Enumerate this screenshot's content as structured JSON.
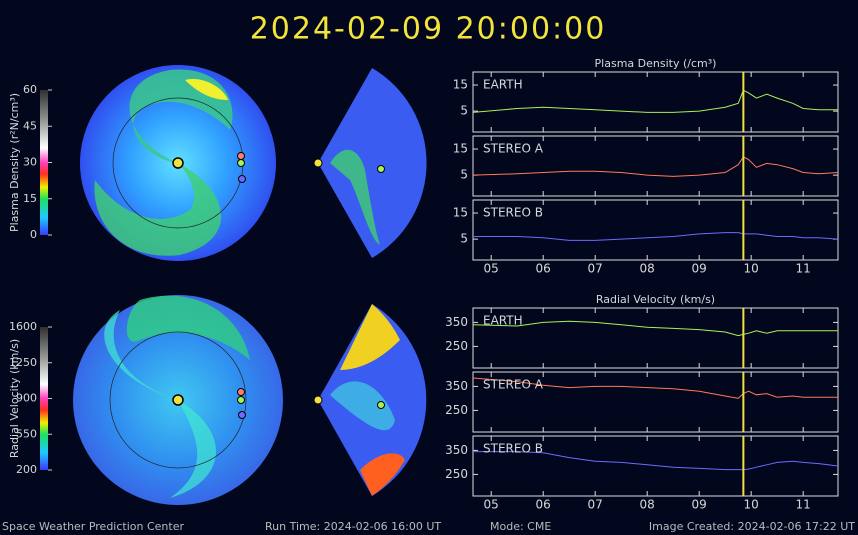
{
  "header": {
    "timestamp": "2024-02-09 20:00:00"
  },
  "footer": {
    "org": "Space Weather Prediction Center",
    "run_time": "Run Time: 2024-02-06 16:00 UT",
    "mode": "Mode: CME",
    "created": "Image Created: 2024-02-06 17:22 UT"
  },
  "colorbars": [
    {
      "label": "Plasma Density (r²N/cm³)",
      "lim": [
        0,
        60
      ],
      "ticks": [
        0,
        15,
        30,
        45,
        60
      ]
    },
    {
      "label": "Radial Velocity (km/s)",
      "lim": [
        200,
        1600
      ],
      "ticks": [
        200,
        550,
        900,
        1250,
        1600
      ]
    }
  ],
  "chart_data": [
    {
      "type": "line",
      "title": "Plasma Density (/cm³)",
      "x": [
        4.65,
        5.5,
        6.0,
        6.5,
        7.0,
        7.5,
        8.0,
        8.5,
        9.0,
        9.5,
        9.75,
        9.85,
        9.95,
        10.1,
        10.3,
        10.5,
        10.8,
        11.0,
        11.3,
        11.67
      ],
      "series": [
        {
          "name": "EARTH",
          "color": "#a6f25a",
          "values": [
            4.5,
            6,
            6.5,
            6,
            5.5,
            5,
            4.5,
            4.5,
            5,
            6.5,
            8,
            13,
            12,
            10,
            11.5,
            10,
            8,
            6,
            5.5,
            5.5
          ]
        }
      ],
      "xlim": [
        4.65,
        11.67
      ],
      "xticks": [
        5,
        6,
        7,
        8,
        9,
        10,
        11
      ],
      "ylim": [
        -3,
        20
      ],
      "yticks": [
        5,
        15
      ],
      "marker_x": 9.85,
      "marker_color": "#f0e040"
    },
    {
      "type": "line",
      "x": [
        4.65,
        5.5,
        6.0,
        6.5,
        7.0,
        7.5,
        8.0,
        8.5,
        9.0,
        9.5,
        9.75,
        9.85,
        9.95,
        10.1,
        10.3,
        10.5,
        10.8,
        11.0,
        11.3,
        11.67
      ],
      "series": [
        {
          "name": "STEREO A",
          "color": "#ff7a58",
          "values": [
            5,
            5.5,
            6,
            6.5,
            6.5,
            6,
            5,
            4.5,
            5,
            6,
            9,
            12,
            11,
            8,
            9.5,
            9,
            7.5,
            6,
            5.5,
            6
          ]
        }
      ],
      "xlim": [
        4.65,
        11.67
      ],
      "xticks": [
        5,
        6,
        7,
        8,
        9,
        10,
        11
      ],
      "ylim": [
        -3,
        20
      ],
      "yticks": [
        5,
        15
      ],
      "marker_x": 9.85,
      "marker_color": "#f0e040"
    },
    {
      "type": "line",
      "x": [
        4.65,
        5.5,
        6.0,
        6.5,
        7.0,
        7.5,
        8.0,
        8.5,
        9.0,
        9.5,
        9.75,
        9.85,
        9.95,
        10.1,
        10.3,
        10.5,
        10.8,
        11.0,
        11.3,
        11.67
      ],
      "series": [
        {
          "name": "STEREO B",
          "color": "#6b6bff",
          "values": [
            6,
            6,
            5.5,
            4.5,
            4.5,
            5,
            5.5,
            6,
            7,
            7.5,
            7.5,
            7,
            7,
            7,
            6.5,
            6,
            6,
            5.5,
            5.5,
            5
          ]
        }
      ],
      "xlim": [
        4.65,
        11.67
      ],
      "xticks": [
        {
          "value": 5,
          "label": "05"
        },
        {
          "value": 6,
          "label": "06"
        },
        {
          "value": 7,
          "label": "07"
        },
        {
          "value": 8,
          "label": "08"
        },
        {
          "value": 9,
          "label": "09"
        },
        10,
        11
      ],
      "ylim": [
        -3,
        20
      ],
      "yticks": [
        5,
        15
      ],
      "marker_x": 9.85,
      "marker_color": "#f0e040"
    },
    {
      "type": "line",
      "title": "Radial Velocity (km/s)",
      "x": [
        4.65,
        5.5,
        6.0,
        6.5,
        7.0,
        7.5,
        8.0,
        8.5,
        9.0,
        9.5,
        9.75,
        9.85,
        9.95,
        10.1,
        10.3,
        10.5,
        10.8,
        11.0,
        11.3,
        11.67
      ],
      "series": [
        {
          "name": "EARTH",
          "color": "#a6f25a",
          "values": [
            340,
            335,
            350,
            355,
            350,
            340,
            330,
            325,
            320,
            310,
            295,
            300,
            305,
            315,
            305,
            315,
            315,
            315,
            315,
            315
          ]
        }
      ],
      "xlim": [
        4.65,
        11.67
      ],
      "xticks": [
        5,
        6,
        7,
        8,
        9,
        10,
        11
      ],
      "ylim": [
        160,
        410
      ],
      "yticks": [
        250,
        350
      ],
      "marker_x": 9.85,
      "marker_color": "#f0e040"
    },
    {
      "type": "line",
      "x": [
        4.65,
        5.5,
        6.0,
        6.5,
        7.0,
        7.5,
        8.0,
        8.5,
        9.0,
        9.5,
        9.75,
        9.85,
        9.95,
        10.1,
        10.3,
        10.5,
        10.8,
        11.0,
        11.3,
        11.67
      ],
      "series": [
        {
          "name": "STEREO A",
          "color": "#ff7a58",
          "values": [
            385,
            370,
            355,
            345,
            350,
            350,
            345,
            340,
            330,
            310,
            300,
            320,
            330,
            315,
            320,
            305,
            310,
            305,
            305,
            305
          ]
        }
      ],
      "xlim": [
        4.65,
        11.67
      ],
      "xticks": [
        5,
        6,
        7,
        8,
        9,
        10,
        11
      ],
      "ylim": [
        160,
        410
      ],
      "yticks": [
        250,
        350
      ],
      "marker_x": 9.85,
      "marker_color": "#f0e040"
    },
    {
      "type": "line",
      "x": [
        4.65,
        5.5,
        6.0,
        6.5,
        7.0,
        7.5,
        8.0,
        8.5,
        9.0,
        9.5,
        9.75,
        9.85,
        9.95,
        10.1,
        10.3,
        10.5,
        10.8,
        11.0,
        11.3,
        11.67
      ],
      "series": [
        {
          "name": "STEREO B",
          "color": "#6b6bff",
          "values": [
            345,
            345,
            340,
            320,
            305,
            300,
            290,
            280,
            275,
            270,
            270,
            270,
            272,
            280,
            290,
            300,
            305,
            300,
            295,
            285
          ]
        }
      ],
      "xlim": [
        4.65,
        11.67
      ],
      "xticks": [
        {
          "value": 5,
          "label": "05"
        },
        {
          "value": 6,
          "label": "06"
        },
        {
          "value": 7,
          "label": "07"
        },
        {
          "value": 8,
          "label": "08"
        },
        {
          "value": 9,
          "label": "09"
        },
        10,
        11
      ],
      "ylim": [
        160,
        410
      ],
      "yticks": [
        250,
        350
      ],
      "marker_x": 9.85,
      "marker_color": "#f0e040"
    }
  ]
}
